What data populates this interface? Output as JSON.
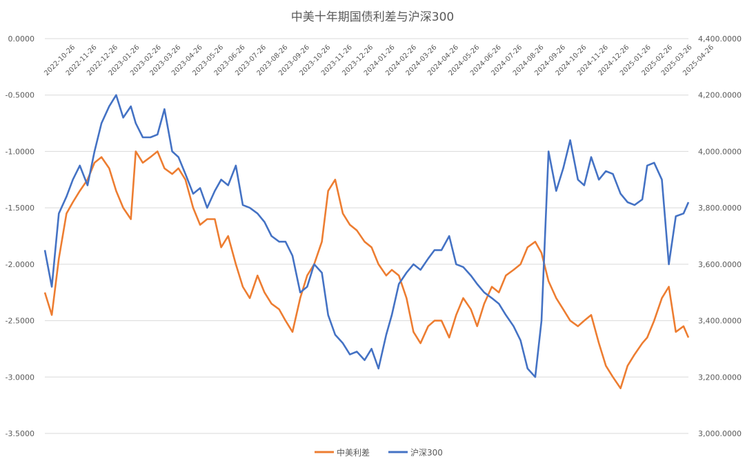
{
  "chart_data": {
    "type": "line",
    "title": "中美十年期国债利差与沪深300",
    "x_tick_labels": [
      "2022-10-26",
      "2022-11-26",
      "2022-12-26",
      "2023-01-26",
      "2023-02-26",
      "2023-03-26",
      "2023-04-26",
      "2023-05-26",
      "2023-06-26",
      "2023-07-26",
      "2023-08-26",
      "2023-09-26",
      "2023-10-26",
      "2023-11-26",
      "2023-12-26",
      "2024-01-26",
      "2024-02-26",
      "2024-03-26",
      "2024-04-26",
      "2024-05-26",
      "2024-06-26",
      "2024-07-26",
      "2024-08-26",
      "2024-09-26",
      "2024-10-26",
      "2024-11-26",
      "2024-12-26",
      "2025-01-26",
      "2025-02-26",
      "2025-03-26",
      "2025-04-26"
    ],
    "y_left": {
      "min": -3.5,
      "max": 0,
      "step": 0.5,
      "tick_labels": [
        "0.0000",
        "-0.5000",
        "-1.0000",
        "-1.5000",
        "-2.0000",
        "-2.5000",
        "-3.0000",
        "-3.5000"
      ]
    },
    "y_right": {
      "min": 3000,
      "max": 4400,
      "step": 200,
      "tick_labels": [
        "4,400.0000",
        "4,200.0000",
        "4,000.0000",
        "3,800.0000",
        "3,600.0000",
        "3,400.0000",
        "3,200.0000",
        "3,000.0000"
      ]
    },
    "grid": true,
    "legend_position": "bottom",
    "series": [
      {
        "name": "中美利差",
        "axis": "left",
        "color": "#ED7D31",
        "x": [
          "2022-10-26",
          "2022-11-05",
          "2022-11-15",
          "2022-11-26",
          "2022-12-05",
          "2022-12-15",
          "2022-12-26",
          "2023-01-05",
          "2023-01-15",
          "2023-01-26",
          "2023-02-05",
          "2023-02-15",
          "2023-02-26",
          "2023-03-05",
          "2023-03-15",
          "2023-03-26",
          "2023-04-05",
          "2023-04-15",
          "2023-04-26",
          "2023-05-05",
          "2023-05-15",
          "2023-05-26",
          "2023-06-05",
          "2023-06-15",
          "2023-06-26",
          "2023-07-05",
          "2023-07-15",
          "2023-07-26",
          "2023-08-05",
          "2023-08-15",
          "2023-08-26",
          "2023-09-05",
          "2023-09-15",
          "2023-09-26",
          "2023-10-05",
          "2023-10-15",
          "2023-10-26",
          "2023-11-05",
          "2023-11-15",
          "2023-11-26",
          "2023-12-05",
          "2023-12-15",
          "2023-12-26",
          "2024-01-05",
          "2024-01-15",
          "2024-01-26",
          "2024-02-05",
          "2024-02-15",
          "2024-02-26",
          "2024-03-05",
          "2024-03-15",
          "2024-03-26",
          "2024-04-05",
          "2024-04-15",
          "2024-04-26",
          "2024-05-05",
          "2024-05-15",
          "2024-05-26",
          "2024-06-05",
          "2024-06-15",
          "2024-06-26",
          "2024-07-05",
          "2024-07-15",
          "2024-07-26",
          "2024-08-05",
          "2024-08-15",
          "2024-08-26",
          "2024-09-05",
          "2024-09-15",
          "2024-09-26",
          "2024-10-05",
          "2024-10-15",
          "2024-10-26",
          "2024-11-05",
          "2024-11-15",
          "2024-11-26",
          "2024-12-05",
          "2024-12-15",
          "2024-12-26",
          "2025-01-05",
          "2025-01-15",
          "2025-01-26",
          "2025-02-05",
          "2025-02-15",
          "2025-02-26",
          "2025-03-05",
          "2025-03-15",
          "2025-03-26",
          "2025-04-05",
          "2025-04-15",
          "2025-04-26",
          "2025-05-03"
        ],
        "values": [
          -2.25,
          -2.45,
          -1.95,
          -1.55,
          -1.45,
          -1.35,
          -1.25,
          -1.1,
          -1.05,
          -1.15,
          -1.35,
          -1.5,
          -1.6,
          -1.0,
          -1.1,
          -1.05,
          -1.0,
          -1.15,
          -1.2,
          -1.15,
          -1.25,
          -1.5,
          -1.65,
          -1.6,
          -1.6,
          -1.85,
          -1.75,
          -2.0,
          -2.2,
          -2.3,
          -2.1,
          -2.25,
          -2.35,
          -2.4,
          -2.5,
          -2.6,
          -2.3,
          -2.1,
          -2.0,
          -1.8,
          -1.35,
          -1.25,
          -1.55,
          -1.65,
          -1.7,
          -1.8,
          -1.85,
          -2.0,
          -2.1,
          -2.05,
          -2.1,
          -2.3,
          -2.6,
          -2.7,
          -2.55,
          -2.5,
          -2.5,
          -2.65,
          -2.45,
          -2.3,
          -2.4,
          -2.55,
          -2.35,
          -2.2,
          -2.25,
          -2.1,
          -2.05,
          -2.0,
          -1.85,
          -1.8,
          -1.9,
          -2.15,
          -2.3,
          -2.4,
          -2.5,
          -2.55,
          -2.5,
          -2.45,
          -2.7,
          -2.9,
          -3.0,
          -3.1,
          -2.9,
          -2.8,
          -2.7,
          -2.65,
          -2.5,
          -2.3,
          -2.2,
          -2.6,
          -2.55,
          -2.65
        ]
      },
      {
        "name": "沪深300",
        "axis": "right",
        "color": "#4472C4",
        "x": [
          "2022-10-26",
          "2022-11-05",
          "2022-11-15",
          "2022-11-26",
          "2022-12-05",
          "2022-12-15",
          "2022-12-26",
          "2023-01-05",
          "2023-01-15",
          "2023-01-26",
          "2023-02-05",
          "2023-02-15",
          "2023-02-26",
          "2023-03-05",
          "2023-03-15",
          "2023-03-26",
          "2023-04-05",
          "2023-04-15",
          "2023-04-26",
          "2023-05-05",
          "2023-05-15",
          "2023-05-26",
          "2023-06-05",
          "2023-06-15",
          "2023-06-26",
          "2023-07-05",
          "2023-07-15",
          "2023-07-26",
          "2023-08-05",
          "2023-08-15",
          "2023-08-26",
          "2023-09-05",
          "2023-09-15",
          "2023-09-26",
          "2023-10-05",
          "2023-10-15",
          "2023-10-26",
          "2023-11-05",
          "2023-11-15",
          "2023-11-26",
          "2023-12-05",
          "2023-12-15",
          "2023-12-26",
          "2024-01-05",
          "2024-01-15",
          "2024-01-26",
          "2024-02-05",
          "2024-02-15",
          "2024-02-26",
          "2024-03-05",
          "2024-03-15",
          "2024-03-26",
          "2024-04-05",
          "2024-04-15",
          "2024-04-26",
          "2024-05-05",
          "2024-05-15",
          "2024-05-26",
          "2024-06-05",
          "2024-06-15",
          "2024-06-26",
          "2024-07-05",
          "2024-07-15",
          "2024-07-26",
          "2024-08-05",
          "2024-08-15",
          "2024-08-26",
          "2024-09-05",
          "2024-09-15",
          "2024-09-26",
          "2024-10-05",
          "2024-10-15",
          "2024-10-26",
          "2024-11-05",
          "2024-11-15",
          "2024-11-26",
          "2024-12-05",
          "2024-12-15",
          "2024-12-26",
          "2025-01-05",
          "2025-01-15",
          "2025-01-26",
          "2025-02-05",
          "2025-02-15",
          "2025-02-26",
          "2025-03-05",
          "2025-03-15",
          "2025-03-26",
          "2025-04-05",
          "2025-04-15",
          "2025-04-26",
          "2025-05-03"
        ],
        "values": [
          3650,
          3520,
          3780,
          3840,
          3900,
          3950,
          3880,
          4000,
          4100,
          4160,
          4200,
          4120,
          4160,
          4100,
          4050,
          4050,
          4060,
          4150,
          4000,
          3980,
          3920,
          3850,
          3870,
          3800,
          3860,
          3900,
          3880,
          3950,
          3810,
          3800,
          3780,
          3750,
          3700,
          3680,
          3680,
          3630,
          3500,
          3520,
          3600,
          3570,
          3420,
          3350,
          3320,
          3280,
          3290,
          3260,
          3300,
          3230,
          3350,
          3420,
          3530,
          3570,
          3600,
          3580,
          3620,
          3650,
          3650,
          3700,
          3600,
          3590,
          3560,
          3530,
          3500,
          3480,
          3460,
          3420,
          3380,
          3330,
          3230,
          3200,
          3400,
          4000,
          3860,
          3940,
          4040,
          3900,
          3880,
          3980,
          3900,
          3930,
          3920,
          3850,
          3820,
          3810,
          3830,
          3950,
          3960,
          3900,
          3600,
          3770,
          3780,
          3820
        ]
      }
    ]
  }
}
